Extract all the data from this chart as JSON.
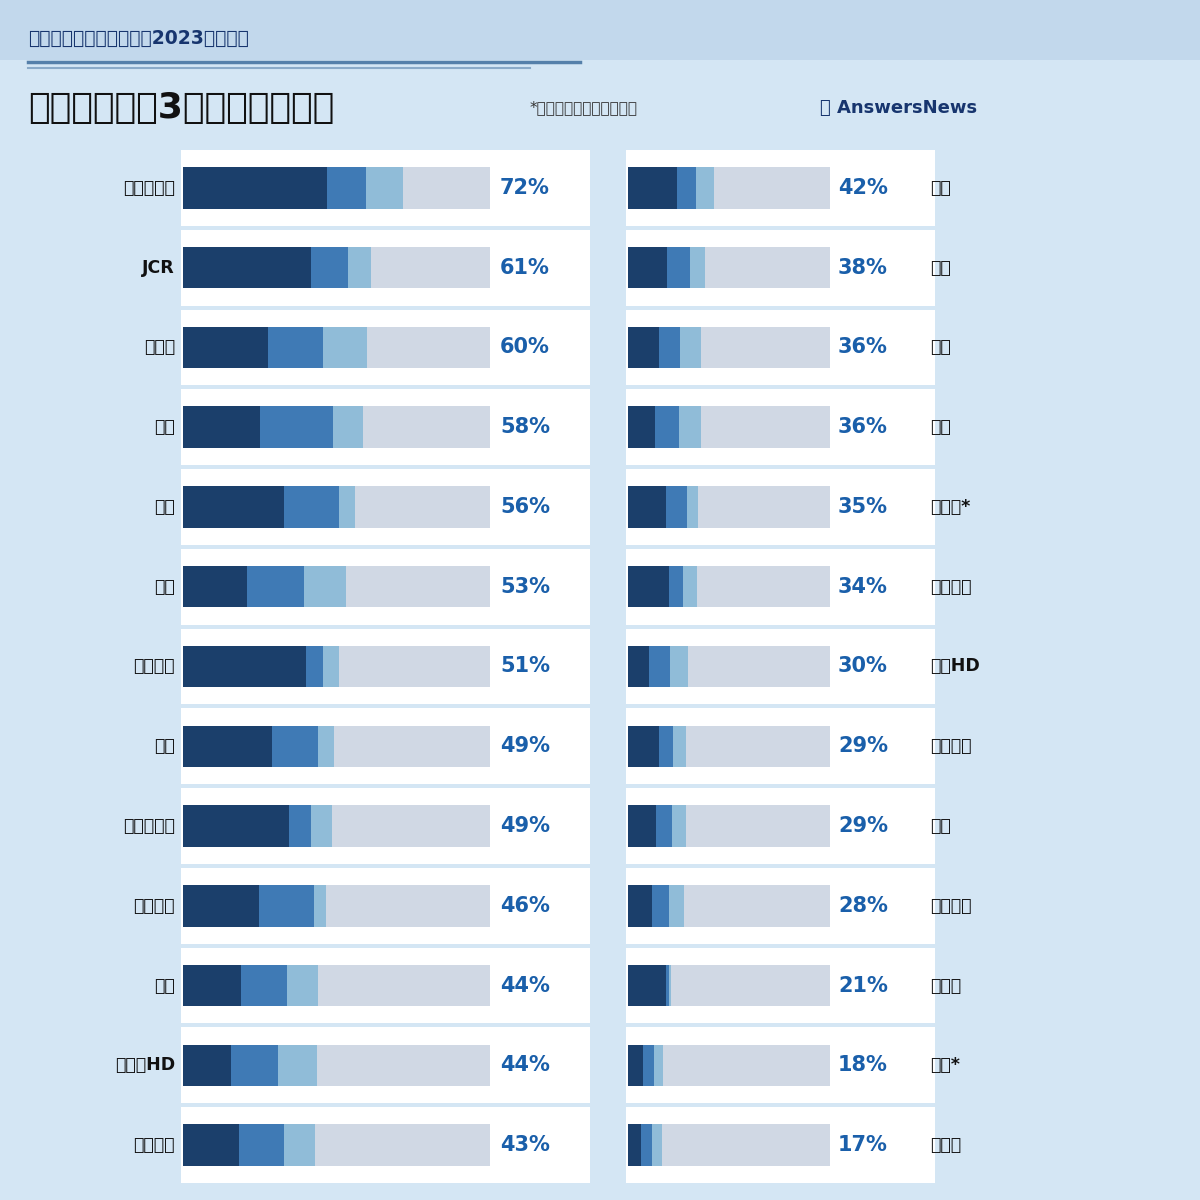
{
  "title_top": "チャートで見る国内製薬2023年度業績",
  "title_main": "売り上げ上位3製品への依存度",
  "subtitle": "*は医薬品関連事業の数値",
  "bg_color": "#d4e6f4",
  "header_strip_color": "#c2d8ec",
  "color_p1": "#1b3f6b",
  "color_p2": "#3f7ab5",
  "color_p3": "#90bcd8",
  "color_other": "#d0d8e4",
  "pct_color": "#1a5faa",
  "left_companies": [
    {
      "name": "アステラス",
      "p1": 7505,
      "p2": 2031,
      "p3": 1981,
      "total": 16037,
      "pct": 72
    },
    {
      "name": "JCR",
      "p1": 179,
      "p2": 52,
      "p3": 32,
      "total": 429,
      "pct": 61
    },
    {
      "name": "ゼリア",
      "p1": 209,
      "p2": 135,
      "p3": 110,
      "total": 757,
      "pct": 60
    },
    {
      "name": "科研",
      "p1": 180,
      "p2": 171,
      "p3": 70,
      "total": 720,
      "pct": 58
    },
    {
      "name": "久光",
      "p1": 467,
      "p2": 255,
      "p3": 74,
      "total": 1417,
      "pct": 56
    },
    {
      "name": "鳥居",
      "p1": 114,
      "p2": 101,
      "p3": 75,
      "total": 546,
      "pct": 53
    },
    {
      "name": "エーザイ",
      "p1": 2976,
      "p2": 418,
      "p3": 375,
      "total": 7418,
      "pct": 51
    },
    {
      "name": "小野",
      "p1": 1455,
      "p2": 761,
      "p3": 258,
      "total": 5027,
      "pct": 49
    },
    {
      "name": "協和キリン",
      "p1": 1525,
      "p2": 319,
      "p3": 303,
      "total": 4422,
      "pct": 49
    },
    {
      "name": "第一三共",
      "p1": 3959,
      "p2": 2877,
      "p3": 609,
      "total": 16017,
      "pct": 46
    },
    {
      "name": "武田",
      "p1": 8009,
      "p2": 6446,
      "p3": 4232,
      "total": 42630,
      "pct": 44
    },
    {
      "name": "あすかHD",
      "p1": 99,
      "p2": 96,
      "p3": 79,
      "total": 628,
      "pct": 44
    },
    {
      "name": "田辺三菱",
      "p1": 792,
      "p2": 653,
      "p3": 433,
      "total": 4374,
      "pct": 43
    }
  ],
  "right_companies": [
    {
      "name": "参天",
      "p1": 727,
      "p2": 295,
      "p3": 259,
      "total": 3020,
      "pct": 42
    },
    {
      "name": "中外",
      "p1": 2123,
      "p2": 1275,
      "p3": 812,
      "total": 11114,
      "pct": 38
    },
    {
      "name": "杏林",
      "p1": 181,
      "p2": 129,
      "p3": 123,
      "total": 1195,
      "pct": 36
    },
    {
      "name": "住友",
      "p1": 422,
      "p2": 368,
      "p3": 340,
      "total": 3146,
      "pct": 36
    },
    {
      "name": "旭化成*",
      "p1": 388,
      "p2": 220,
      "p3": 112,
      "total": 2084,
      "pct": 35
    },
    {
      "name": "キッセイ",
      "p1": 153,
      "p2": 52,
      "p3": 52,
      "total": 756,
      "pct": 34
    },
    {
      "name": "大塚HD",
      "p1": 2125,
      "p2": 2025,
      "p3": 1835,
      "total": 20186,
      "pct": 30
    },
    {
      "name": "富士製薬",
      "p1": 63,
      "p2": 28,
      "p3": 27,
      "total": 409,
      "pct": 29
    },
    {
      "name": "持田",
      "p1": 145,
      "p2": 77,
      "p3": 74,
      "total": 1029,
      "pct": 29
    },
    {
      "name": "日本新薬",
      "p1": 175,
      "p2": 129,
      "p3": 104,
      "total": 1483,
      "pct": 28
    },
    {
      "name": "塩野義",
      "p1": 829,
      "p2": 45,
      "p3": 42,
      "total": 4351,
      "pct": 21
    },
    {
      "name": "帝人*",
      "p1": 111,
      "p2": 74,
      "p3": 69,
      "total": 1447,
      "pct": 18
    },
    {
      "name": "ツムラ",
      "p1": 99,
      "p2": 80,
      "p3": 75,
      "total": 1508,
      "pct": 17
    }
  ]
}
